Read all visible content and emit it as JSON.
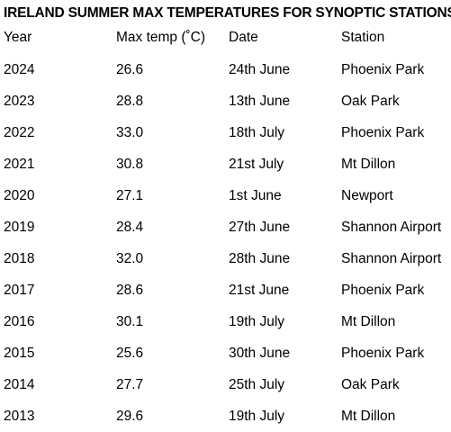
{
  "title": "IRELAND SUMMER MAX TEMPERATURES FOR SYNOPTIC STATIONS",
  "headers": {
    "year": "Year",
    "temp": "Max temp (˚C)",
    "date": "Date",
    "station": "Station"
  },
  "rows": [
    {
      "year": "2024",
      "temp": "26.6",
      "date": "24th June",
      "station": "Phoenix Park"
    },
    {
      "year": "2023",
      "temp": "28.8",
      "date": "13th June",
      "station": "Oak Park"
    },
    {
      "year": "2022",
      "temp": "33.0",
      "date": "18th July",
      "station": "Phoenix Park"
    },
    {
      "year": "2021",
      "temp": "30.8",
      "date": "21st July",
      "station": "Mt Dillon"
    },
    {
      "year": "2020",
      "temp": "27.1",
      "date": "1st June",
      "station": "Newport"
    },
    {
      "year": "2019",
      "temp": "28.4",
      "date": "27th June",
      "station": "Shannon Airport"
    },
    {
      "year": "2018",
      "temp": "32.0",
      "date": "28th June",
      "station": "Shannon Airport"
    },
    {
      "year": "2017",
      "temp": "28.6",
      "date": "21st June",
      "station": "Phoenix Park"
    },
    {
      "year": "2016",
      "temp": "30.1",
      "date": "19th July",
      "station": "Mt Dillon"
    },
    {
      "year": "2015",
      "temp": "25.6",
      "date": "30th June",
      "station": "Phoenix Park"
    },
    {
      "year": "2014",
      "temp": "27.7",
      "date": "25th July",
      "station": "Oak Park"
    },
    {
      "year": "2013",
      "temp": "29.6",
      "date": "19th July",
      "station": "Mt Dillon"
    }
  ]
}
